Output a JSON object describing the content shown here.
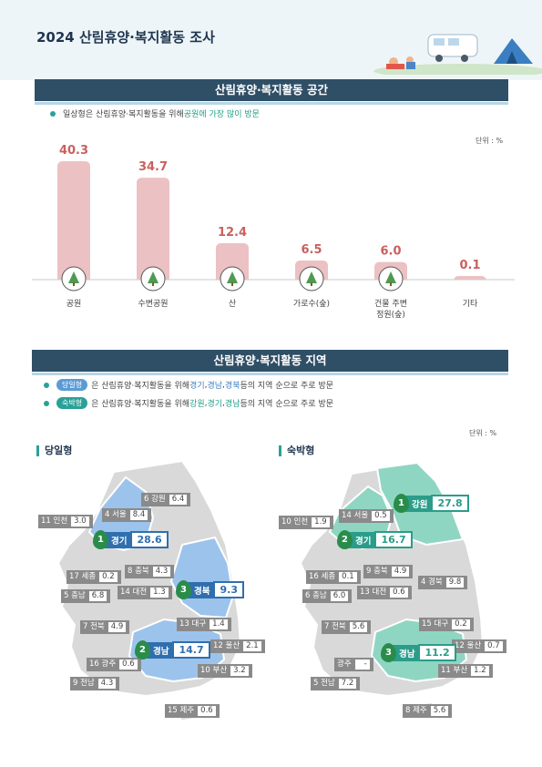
{
  "doc_title": "2024 산림휴양·복지활동 조사",
  "section1": {
    "title": "산림휴양·복지활동 공간",
    "bullet_plain": "일상형은 산림휴양·복지활동을 위해 ",
    "bullet_highlight": "공원에 가장 많이 방문",
    "unit": "단위 : %"
  },
  "chart_data": {
    "type": "bar",
    "categories": [
      "공원",
      "수변공원",
      "산",
      "가로수(숲)",
      "건물 주변 정원(숲)",
      "기타"
    ],
    "category_lines": [
      [
        "공원"
      ],
      [
        "수변공원"
      ],
      [
        "산"
      ],
      [
        "가로수(숲)"
      ],
      [
        "건물 주변",
        "정원(숲)"
      ],
      [
        "기타"
      ]
    ],
    "values": [
      40.3,
      34.7,
      12.4,
      6.5,
      6.0,
      0.1
    ],
    "value_labels": [
      "40.3",
      "34.7",
      "12.4",
      "6.5",
      "6.0",
      "0.1"
    ],
    "icons": [
      "park-bench-icon",
      "waterfront-icon",
      "mountain-icon",
      "street-trees-icon",
      "building-garden-icon",
      ""
    ],
    "ylim": [
      0,
      40.3
    ],
    "colors": {
      "bar": "#ecc1c3",
      "label": "#c9605f"
    }
  },
  "section2": {
    "title": "산림휴양·복지활동 지역",
    "day_pill": "당일형",
    "day_text_a": " 은 산림휴양·복지활동을 위해 ",
    "day_r1": "경기",
    "day_r2": "경남",
    "day_r3": "경북",
    "day_text_b": " 등의 지역 순으로 주로 방문",
    "stay_pill": "숙박형",
    "stay_text_a": " 은 산림휴양·복지활동을 위해 ",
    "stay_r1": "강원",
    "stay_r2": "경기",
    "stay_r3": "경남",
    "stay_text_b": " 등의 지역 순으로 주로 방문",
    "sep": ", ",
    "unit": "단위 : %"
  },
  "day_map": {
    "heading": "당일형",
    "top": [
      {
        "rank": "1",
        "name": "경기",
        "value": "28.6"
      },
      {
        "rank": "2",
        "name": "경남",
        "value": "14.7"
      },
      {
        "rank": "3",
        "name": "경북",
        "value": "9.3"
      }
    ],
    "labels": [
      {
        "name": "6 강원",
        "value": "6.4"
      },
      {
        "name": "11 인천",
        "value": "3.0"
      },
      {
        "name": "4 서울",
        "value": "8.4"
      },
      {
        "name": "8 충북",
        "value": "4.3"
      },
      {
        "name": "17 세종",
        "value": "0.2"
      },
      {
        "name": "5 충남",
        "value": "6.8"
      },
      {
        "name": "14 대전",
        "value": "1.3"
      },
      {
        "name": "7 전북",
        "value": "4.9"
      },
      {
        "name": "13 대구",
        "value": "1.4"
      },
      {
        "name": "12 울산",
        "value": "2.1"
      },
      {
        "name": "16 광주",
        "value": "0.6"
      },
      {
        "name": "10 부산",
        "value": "3.2"
      },
      {
        "name": "9 전남",
        "value": "4.3"
      },
      {
        "name": "15 제주",
        "value": "0.6"
      }
    ]
  },
  "stay_map": {
    "heading": "숙박형",
    "top": [
      {
        "rank": "1",
        "name": "강원",
        "value": "27.8"
      },
      {
        "rank": "2",
        "name": "경기",
        "value": "16.7"
      },
      {
        "rank": "3",
        "name": "경남",
        "value": "11.2"
      }
    ],
    "labels": [
      {
        "name": "14 서울",
        "value": "0.5"
      },
      {
        "name": "10 인천",
        "value": "1.9"
      },
      {
        "name": "9 충북",
        "value": "4.9"
      },
      {
        "name": "4 경북",
        "value": "9.8"
      },
      {
        "name": "16 세종",
        "value": "0.1"
      },
      {
        "name": "6 충남",
        "value": "6.0"
      },
      {
        "name": "13 대전",
        "value": "0.6"
      },
      {
        "name": "7 전북",
        "value": "5.6"
      },
      {
        "name": "15 대구",
        "value": "0.2"
      },
      {
        "name": "12 울산",
        "value": "0.7"
      },
      {
        "name": "광주",
        "value": "-"
      },
      {
        "name": "11 부산",
        "value": "1.2"
      },
      {
        "name": "5 전남",
        "value": "7.2"
      },
      {
        "name": "8 제주",
        "value": "5.6"
      }
    ]
  },
  "colors": {
    "header_bar": "#2f4f66",
    "day_map_highlight": "#9cc3ec",
    "stay_map_highlight": "#8fd6c2",
    "map_base": "#d9d9d9"
  }
}
